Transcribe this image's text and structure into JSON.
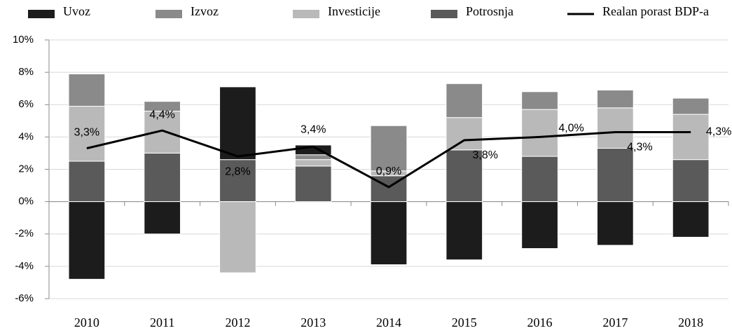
{
  "chart_data": {
    "type": "stacked_bar_line",
    "categories": [
      "2010",
      "2011",
      "2012",
      "2013",
      "2014",
      "2015",
      "2016",
      "2017",
      "2018"
    ],
    "series": [
      {
        "name": "Uvoz",
        "color": "#1c1c1c",
        "values": [
          -4.8,
          -2.0,
          4.5,
          0.6,
          -3.9,
          -3.6,
          -2.9,
          -2.7,
          -2.2
        ]
      },
      {
        "name": "Izvoz",
        "color": "#8a8a8a",
        "values": [
          2.0,
          0.6,
          0,
          0.3,
          2.8,
          2.1,
          1.1,
          1.1,
          1.0
        ]
      },
      {
        "name": "Investicije",
        "color": "#b9b9b9",
        "values": [
          3.4,
          2.6,
          -4.4,
          0.4,
          0.3,
          2.0,
          2.9,
          2.5,
          2.8
        ]
      },
      {
        "name": "Potrosnja",
        "color": "#5a5a5a",
        "values": [
          2.5,
          3.0,
          2.6,
          2.2,
          1.6,
          3.2,
          2.8,
          3.3,
          2.6
        ]
      },
      {
        "name": "Realan porast BDP-a",
        "color": "#000000",
        "type": "line",
        "values": [
          3.3,
          4.4,
          2.8,
          3.4,
          0.9,
          3.8,
          4.0,
          4.3,
          4.3
        ],
        "value_labels": [
          "3,3%",
          "4,4%",
          "2,8%",
          "3,4%",
          "0,9%",
          "3,8%",
          "4,0%",
          "4,3%",
          "4,3%"
        ]
      }
    ],
    "ylim": [
      -6,
      10
    ],
    "yticks": [
      {
        "value": -6,
        "label": "-6%"
      },
      {
        "value": -4,
        "label": "-4%"
      },
      {
        "value": -2,
        "label": "-2%"
      },
      {
        "value": 0,
        "label": "0%"
      },
      {
        "value": 2,
        "label": "2%"
      },
      {
        "value": 4,
        "label": "4%"
      },
      {
        "value": 6,
        "label": "6%"
      },
      {
        "value": 8,
        "label": "8%"
      },
      {
        "value": 10,
        "label": "10%"
      }
    ],
    "grid": true,
    "legend": "top"
  }
}
